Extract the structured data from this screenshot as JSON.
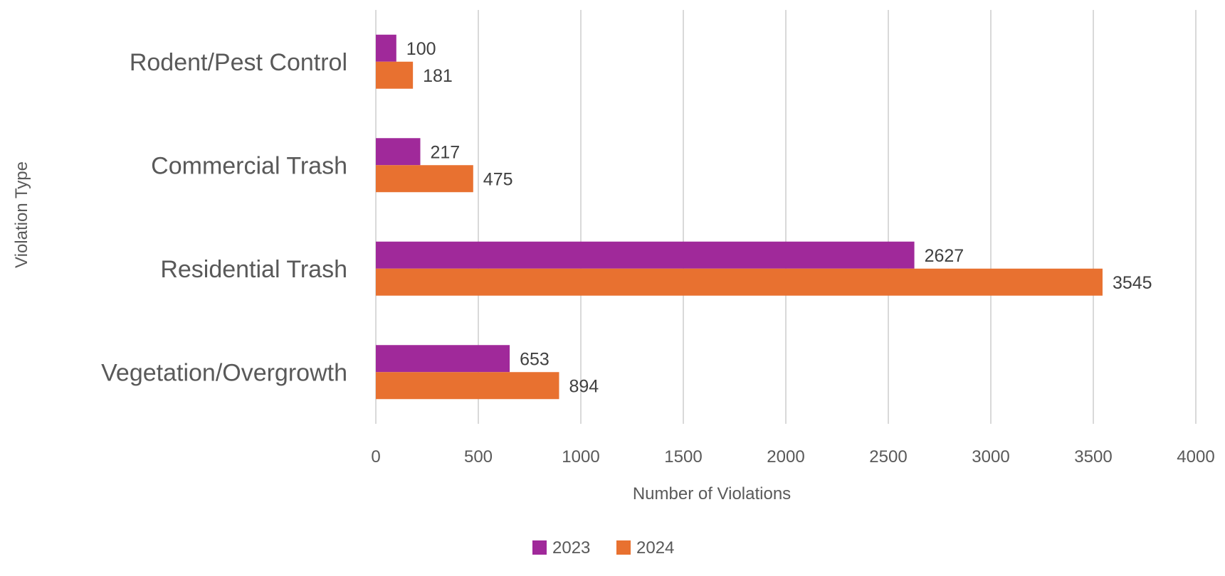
{
  "chart_data": {
    "type": "bar",
    "orientation": "horizontal",
    "categories": [
      "Rodent/Pest Control",
      "Commercial Trash",
      "Residential Trash",
      "Vegetation/Overgrowth"
    ],
    "series": [
      {
        "name": "2023",
        "color": "#a0299a",
        "values": [
          100,
          217,
          2627,
          653
        ]
      },
      {
        "name": "2024",
        "color": "#e87130",
        "values": [
          181,
          475,
          3545,
          894
        ]
      }
    ],
    "title": "",
    "xlabel": "Number of Violations",
    "ylabel": "Violation Type",
    "xlim": [
      0,
      4000
    ],
    "xticks": [
      "0",
      "500",
      "1000",
      "1500",
      "2000",
      "2500",
      "3000",
      "3500",
      "4000"
    ],
    "grid": true,
    "legend_position": "bottom",
    "data_labels": true
  }
}
